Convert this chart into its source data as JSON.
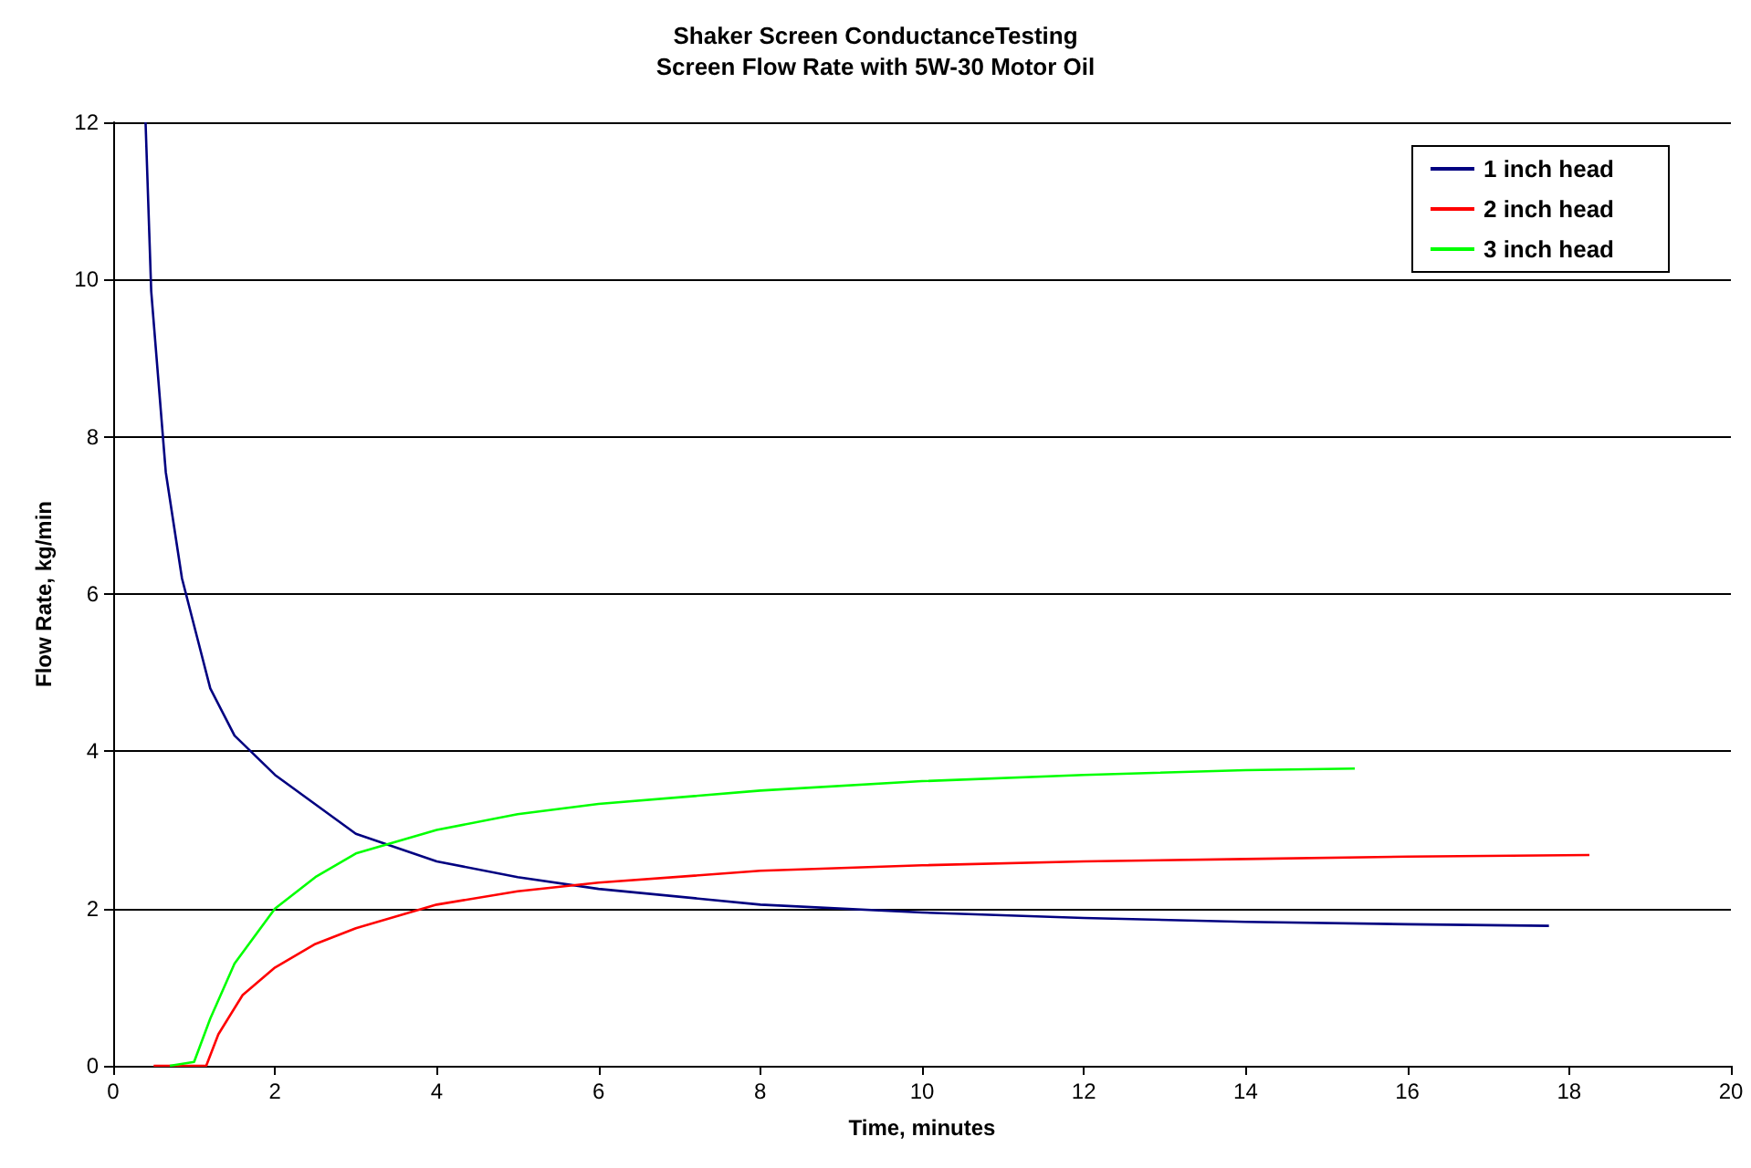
{
  "chart_data": {
    "type": "line",
    "title": "Shaker Screen ConductanceTesting",
    "subtitle": "Screen Flow Rate with 5W-30 Motor Oil",
    "xlabel": "Time, minutes",
    "ylabel": "Flow Rate, kg/min",
    "xlim": [
      0,
      20
    ],
    "xticks": [
      0,
      2,
      4,
      6,
      8,
      10,
      12,
      14,
      16,
      18,
      20
    ],
    "ylim": [
      0,
      12
    ],
    "yticks": [
      0,
      2,
      4,
      6,
      8,
      10,
      12
    ],
    "grid": "y",
    "legend": "top right",
    "marker": "none",
    "series": [
      {
        "name": "1 inch head",
        "color": "#000080",
        "x": [
          0.4,
          0.47,
          0.65,
          0.85,
          1.05,
          1.2,
          1.5,
          2,
          3,
          4,
          5,
          6,
          8,
          10,
          12,
          14,
          16,
          17.75
        ],
        "values": [
          12,
          9.85,
          7.55,
          6.2,
          5.4,
          4.8,
          4.2,
          3.7,
          2.95,
          2.6,
          2.4,
          2.25,
          2.05,
          1.95,
          1.88,
          1.83,
          1.8,
          1.78
        ]
      },
      {
        "name": "2 inch head",
        "color": "#ff0000",
        "x": [
          0.5,
          1.15,
          1.3,
          1.6,
          2,
          2.5,
          3,
          4,
          5,
          6,
          8,
          10,
          12,
          14,
          16,
          18.25
        ],
        "values": [
          0,
          0,
          0.4,
          0.9,
          1.25,
          1.55,
          1.75,
          2.05,
          2.22,
          2.33,
          2.48,
          2.55,
          2.6,
          2.63,
          2.66,
          2.68
        ]
      },
      {
        "name": "3 inch head",
        "color": "#00ff00",
        "x": [
          0.7,
          1,
          1.2,
          1.5,
          2,
          2.5,
          3,
          4,
          5,
          6,
          8,
          10,
          12,
          14,
          15.35
        ],
        "values": [
          0,
          0.05,
          0.6,
          1.3,
          2.0,
          2.4,
          2.7,
          3.0,
          3.2,
          3.33,
          3.5,
          3.62,
          3.7,
          3.76,
          3.78
        ]
      }
    ]
  }
}
